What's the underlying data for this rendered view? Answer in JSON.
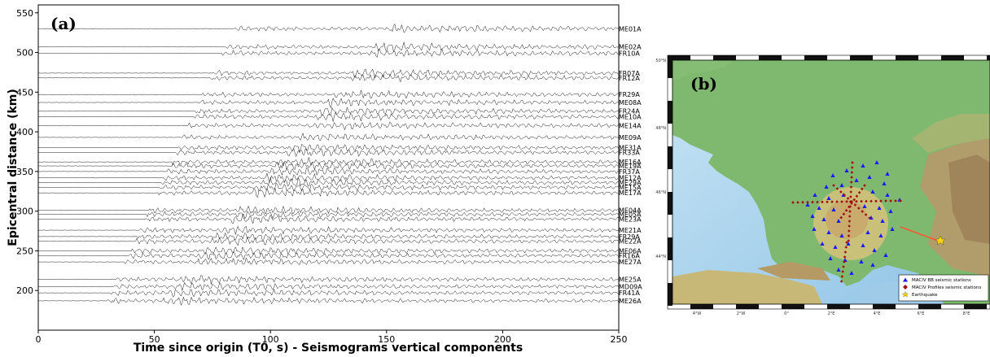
{
  "panel_a": {
    "label": "(a)",
    "xlabel": "Time since origin (T0, s) - Seismograms vertical components",
    "ylabel": "Epicentral distance (km)",
    "xticks": [
      "0",
      "50",
      "100",
      "150",
      "200",
      "250"
    ],
    "yticks": [
      "200",
      "250",
      "300",
      "350",
      "400",
      "450",
      "500",
      "550"
    ]
  },
  "chart_data": {
    "type": "line",
    "xlim": [
      0,
      250
    ],
    "ylim": [
      150,
      560
    ],
    "stations": [
      {
        "name": "ME01A",
        "distance": 530
      },
      {
        "name": "ME02A",
        "distance": 507
      },
      {
        "name": "FR10A",
        "distance": 499
      },
      {
        "name": "FR07A",
        "distance": 474
      },
      {
        "name": "FR12A",
        "distance": 468
      },
      {
        "name": "FR29A",
        "distance": 447
      },
      {
        "name": "ME08A",
        "distance": 437
      },
      {
        "name": "FR24A",
        "distance": 426
      },
      {
        "name": "ME10A",
        "distance": 419
      },
      {
        "name": "ME14A",
        "distance": 408
      },
      {
        "name": "ME09A",
        "distance": 393
      },
      {
        "name": "ME31A",
        "distance": 380
      },
      {
        "name": "FR33A",
        "distance": 374
      },
      {
        "name": "ME16A",
        "distance": 362
      },
      {
        "name": "ME19A",
        "distance": 357
      },
      {
        "name": "FR37A",
        "distance": 350
      },
      {
        "name": "ME12A",
        "distance": 342
      },
      {
        "name": "ME29A",
        "distance": 336
      },
      {
        "name": "ME15A",
        "distance": 330
      },
      {
        "name": "ME17A",
        "distance": 323
      },
      {
        "name": "ME04A",
        "distance": 301
      },
      {
        "name": "ME05A",
        "distance": 296
      },
      {
        "name": "ME23A",
        "distance": 290
      },
      {
        "name": "ME21A",
        "distance": 276
      },
      {
        "name": "FR29A",
        "distance": 268
      },
      {
        "name": "ME22A",
        "distance": 262
      },
      {
        "name": "ME06A",
        "distance": 250
      },
      {
        "name": "FR16A",
        "distance": 244
      },
      {
        "name": "ME27A",
        "distance": 236
      },
      {
        "name": "ME25A",
        "distance": 214
      },
      {
        "name": "MD09A",
        "distance": 205
      },
      {
        "name": "FR41A",
        "distance": 197
      },
      {
        "name": "ME26A",
        "distance": 187
      }
    ]
  },
  "panel_b": {
    "label": "(b)",
    "lat_ticks": [
      "50°N",
      "48°N",
      "46°N",
      "44°N"
    ],
    "lon_ticks": [
      "4°W",
      "2°W",
      "0°",
      "2°E",
      "4°E",
      "6°E",
      "8°E"
    ],
    "legend": [
      {
        "label": "MACIV BB seismic stations",
        "color": "#1a1aff"
      },
      {
        "label": "MACIV Profiles seismic stations",
        "color": "#a01010"
      },
      {
        "label": "Earthquake",
        "color": "#ffd700"
      }
    ]
  }
}
